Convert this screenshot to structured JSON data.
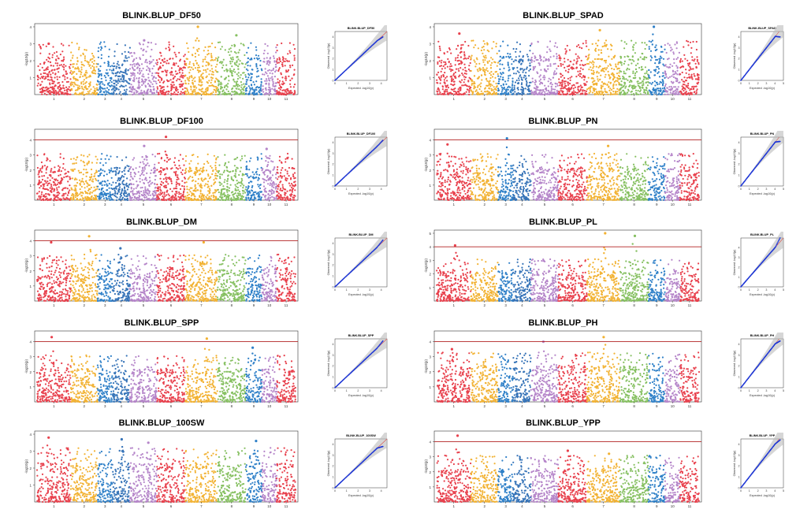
{
  "chart_data": [
    {
      "type": "scatter",
      "kind": "manhattan",
      "title": "BLINK.BLUP_DF50",
      "ylabel": "-log10(p)",
      "xlabel": "",
      "chromosomes": [
        "1",
        "2",
        "3",
        "4",
        "5",
        "6",
        "7",
        "8",
        "9",
        "10",
        "11"
      ],
      "ylim": [
        0,
        4
      ],
      "yticks": [
        "1",
        "2",
        "3",
        "4"
      ],
      "threshold": null,
      "peaks": [
        {
          "chr": "1",
          "y": 3.0
        },
        {
          "chr": "5",
          "y": 3.2
        },
        {
          "chr": "7",
          "y": 4.0
        },
        {
          "chr": "8",
          "y": 3.5
        }
      ],
      "base_height": 2.2
    },
    {
      "type": "scatter",
      "kind": "qq",
      "title": "BLINK.BLUP_DF50",
      "xlabel": "Expected -log10(p)",
      "ylabel": "Observed -log10(p)",
      "xticks": [
        "0",
        "1",
        "2",
        "3",
        "4"
      ],
      "yticks": [
        "0",
        "1",
        "2",
        "3",
        "4"
      ],
      "xlim": [
        0,
        4.5
      ],
      "ylim": [
        0,
        4.5
      ],
      "obs_max": 4.0
    },
    {
      "type": "scatter",
      "kind": "manhattan",
      "title": "BLINK.BLUP_SPAD",
      "ylabel": "-log10(p)",
      "xlabel": "",
      "chromosomes": [
        "1",
        "2",
        "3",
        "4",
        "5",
        "6",
        "7",
        "8",
        "9",
        "10",
        "11"
      ],
      "ylim": [
        0,
        4
      ],
      "yticks": [
        "1",
        "2",
        "3",
        "4"
      ],
      "threshold": null,
      "peaks": [
        {
          "chr": "1",
          "y": 3.6
        },
        {
          "chr": "7",
          "y": 3.8
        },
        {
          "chr": "9",
          "y": 4.0
        }
      ],
      "base_height": 2.3
    },
    {
      "type": "scatter",
      "kind": "qq",
      "title": "BLINK.BLUP_SPAD",
      "xlabel": "Expected -log10(p)",
      "ylabel": "Observed -log10(p)",
      "xticks": [
        "0",
        "1",
        "2",
        "3",
        "4",
        "5"
      ],
      "yticks": [
        "0",
        "1",
        "2",
        "3",
        "4"
      ],
      "xlim": [
        0,
        5
      ],
      "ylim": [
        0,
        4.5
      ],
      "obs_max": 4.0
    },
    {
      "type": "scatter",
      "kind": "manhattan",
      "title": "BLINK.BLUP_DF100",
      "ylabel": "-log10(p)",
      "xlabel": "",
      "chromosomes": [
        "1",
        "2",
        "3",
        "4",
        "5",
        "6",
        "7",
        "8",
        "9",
        "10",
        "11"
      ],
      "ylim": [
        0,
        4.5
      ],
      "yticks": [
        "1",
        "2",
        "3",
        "4"
      ],
      "threshold": 4.0,
      "peaks": [
        {
          "chr": "6",
          "y": 4.2
        },
        {
          "chr": "5",
          "y": 3.6
        },
        {
          "chr": "10",
          "y": 3.4
        }
      ],
      "base_height": 2.2
    },
    {
      "type": "scatter",
      "kind": "qq",
      "title": "BLINK.BLUP_DF100",
      "xlabel": "Expected -log10(p)",
      "ylabel": "Observed -log10(p)",
      "xticks": [
        "0",
        "1",
        "2",
        "3",
        "4"
      ],
      "yticks": [
        "0",
        "1",
        "2",
        "3",
        "4"
      ],
      "xlim": [
        0,
        4.5
      ],
      "ylim": [
        0,
        4.5
      ],
      "obs_max": 4.2
    },
    {
      "type": "scatter",
      "kind": "manhattan",
      "title": "BLINK.BLUP_PN",
      "ylabel": "-log10(p)",
      "xlabel": "",
      "chromosomes": [
        "1",
        "2",
        "3",
        "4",
        "5",
        "6",
        "7",
        "8",
        "9",
        "10",
        "11"
      ],
      "ylim": [
        0,
        4.5
      ],
      "yticks": [
        "1",
        "2",
        "3",
        "4"
      ],
      "threshold": 4.0,
      "peaks": [
        {
          "chr": "3",
          "y": 4.1
        },
        {
          "chr": "1",
          "y": 3.7
        },
        {
          "chr": "7",
          "y": 3.6
        }
      ],
      "base_height": 2.2
    },
    {
      "type": "scatter",
      "kind": "qq",
      "title": "BLINK.BLUP_PN",
      "xlabel": "Expected -log10(p)",
      "ylabel": "Observed -log10(p)",
      "xticks": [
        "0",
        "1",
        "2",
        "3",
        "4",
        "5"
      ],
      "yticks": [
        "0",
        "1",
        "2",
        "3",
        "4"
      ],
      "xlim": [
        0,
        5
      ],
      "ylim": [
        0,
        4.5
      ],
      "obs_max": 4.1
    },
    {
      "type": "scatter",
      "kind": "manhattan",
      "title": "BLINK.BLUP_DM",
      "ylabel": "-log10(p)",
      "xlabel": "",
      "chromosomes": [
        "1",
        "2",
        "3",
        "4",
        "5",
        "6",
        "7",
        "8",
        "9",
        "10",
        "11"
      ],
      "ylim": [
        0,
        4.5
      ],
      "yticks": [
        "1",
        "2",
        "3",
        "4"
      ],
      "threshold": 4.0,
      "peaks": [
        {
          "chr": "2",
          "y": 4.3
        },
        {
          "chr": "1",
          "y": 3.9
        },
        {
          "chr": "4",
          "y": 3.5
        },
        {
          "chr": "7",
          "y": 3.9
        }
      ],
      "base_height": 2.2
    },
    {
      "type": "scatter",
      "kind": "qq",
      "title": "BLINK.BLUP_DM",
      "xlabel": "Expected -log10(p)",
      "ylabel": "Observed -log10(p)",
      "xticks": [
        "0",
        "1",
        "2",
        "3",
        "4"
      ],
      "yticks": [
        "0",
        "1",
        "2",
        "3",
        "4"
      ],
      "xlim": [
        0,
        4.5
      ],
      "ylim": [
        0,
        4.5
      ],
      "obs_max": 4.3
    },
    {
      "type": "scatter",
      "kind": "manhattan",
      "title": "BLINK.BLUP_PL",
      "ylabel": "-log10(p)",
      "xlabel": "",
      "chromosomes": [
        "1",
        "2",
        "3",
        "4",
        "5",
        "6",
        "7",
        "8",
        "9",
        "10",
        "11"
      ],
      "ylim": [
        0,
        5
      ],
      "yticks": [
        "1",
        "2",
        "3",
        "4",
        "5"
      ],
      "threshold": 4.0,
      "peaks": [
        {
          "chr": "7",
          "y": 5.0
        },
        {
          "chr": "1",
          "y": 4.1
        },
        {
          "chr": "8",
          "y": 4.8
        }
      ],
      "base_height": 2.2
    },
    {
      "type": "scatter",
      "kind": "qq",
      "title": "BLINK.BLUP_PL",
      "xlabel": "Expected -log10(p)",
      "ylabel": "Observed -log10(p)",
      "xticks": [
        "0",
        "1",
        "2",
        "3",
        "4",
        "5"
      ],
      "yticks": [
        "0",
        "1",
        "2",
        "3",
        "4"
      ],
      "xlim": [
        0,
        5
      ],
      "ylim": [
        0,
        5
      ],
      "obs_max": 5.0
    },
    {
      "type": "scatter",
      "kind": "manhattan",
      "title": "BLINK.BLUP_SPP",
      "ylabel": "-log10(p)",
      "xlabel": "",
      "chromosomes": [
        "1",
        "2",
        "3",
        "4",
        "5",
        "6",
        "7",
        "8",
        "9",
        "10",
        "11"
      ],
      "ylim": [
        0,
        4.5
      ],
      "yticks": [
        "1",
        "2",
        "3",
        "4"
      ],
      "threshold": 4.0,
      "peaks": [
        {
          "chr": "1",
          "y": 4.3
        },
        {
          "chr": "7",
          "y": 4.2
        },
        {
          "chr": "9",
          "y": 3.6
        }
      ],
      "base_height": 2.2
    },
    {
      "type": "scatter",
      "kind": "qq",
      "title": "BLINK.BLUP_SPP",
      "xlabel": "Expected -log10(p)",
      "ylabel": "Observed -log10(p)",
      "xticks": [
        "0",
        "1",
        "2",
        "3",
        "4"
      ],
      "yticks": [
        "0",
        "1",
        "2",
        "3",
        "4"
      ],
      "xlim": [
        0,
        4.5
      ],
      "ylim": [
        0,
        4.5
      ],
      "obs_max": 4.3
    },
    {
      "type": "scatter",
      "kind": "manhattan",
      "title": "BLINK.BLUP_PH",
      "ylabel": "-log10(p)",
      "xlabel": "",
      "chromosomes": [
        "1",
        "2",
        "3",
        "4",
        "5",
        "6",
        "7",
        "8",
        "9",
        "10",
        "11"
      ],
      "ylim": [
        0,
        4.5
      ],
      "yticks": [
        "1",
        "2",
        "3",
        "4"
      ],
      "threshold": 4.0,
      "peaks": [
        {
          "chr": "5",
          "y": 4.0
        },
        {
          "chr": "7",
          "y": 4.3
        },
        {
          "chr": "1",
          "y": 3.5
        }
      ],
      "base_height": 2.4
    },
    {
      "type": "scatter",
      "kind": "qq",
      "title": "BLINK.BLUP_PH",
      "xlabel": "Expected -log10(p)",
      "ylabel": "Observed -log10(p)",
      "xticks": [
        "0",
        "1",
        "2",
        "3",
        "4",
        "5"
      ],
      "yticks": [
        "0",
        "1",
        "2",
        "3",
        "4"
      ],
      "xlim": [
        0,
        5
      ],
      "ylim": [
        0,
        4.5
      ],
      "obs_max": 4.3
    },
    {
      "type": "scatter",
      "kind": "manhattan",
      "title": "BLINK.BLUP_100SW",
      "ylabel": "-log10(p)",
      "xlabel": "",
      "chromosomes": [
        "1",
        "2",
        "3",
        "4",
        "5",
        "6",
        "7",
        "8",
        "9",
        "10",
        "11"
      ],
      "ylim": [
        0,
        4
      ],
      "yticks": [
        "1",
        "2",
        "3",
        "4"
      ],
      "threshold": null,
      "peaks": [
        {
          "chr": "1",
          "y": 3.8
        },
        {
          "chr": "4",
          "y": 3.7
        },
        {
          "chr": "5",
          "y": 3.5
        },
        {
          "chr": "9",
          "y": 3.6
        }
      ],
      "base_height": 2.3
    },
    {
      "type": "scatter",
      "kind": "qq",
      "title": "BLINK.BLUP_100SW",
      "xlabel": "Expected -log10(p)",
      "ylabel": "Observed -log10(p)",
      "xticks": [
        "0",
        "1",
        "2",
        "3",
        "4"
      ],
      "yticks": [
        "0",
        "1",
        "2",
        "3",
        "4"
      ],
      "xlim": [
        0,
        4.5
      ],
      "ylim": [
        0,
        4.5
      ],
      "obs_max": 3.8
    },
    {
      "type": "scatter",
      "kind": "manhattan",
      "title": "BLINK.BLUP_YPP",
      "ylabel": "-log10(p)",
      "xlabel": "",
      "chromosomes": [
        "1",
        "2",
        "3",
        "4",
        "5",
        "6",
        "7",
        "8",
        "9",
        "10",
        "11"
      ],
      "ylim": [
        0,
        4.5
      ],
      "yticks": [
        "1",
        "2",
        "3",
        "4"
      ],
      "threshold": 4.0,
      "peaks": [
        {
          "chr": "1",
          "y": 4.4
        },
        {
          "chr": "6",
          "y": 3.4
        },
        {
          "chr": "7",
          "y": 3.2
        }
      ],
      "base_height": 2.2
    },
    {
      "type": "scatter",
      "kind": "qq",
      "title": "BLINK.BLUP_YPP",
      "xlabel": "Expected -log10(p)",
      "ylabel": "Observed -log10(p)",
      "xticks": [
        "0",
        "1",
        "2",
        "3",
        "4",
        "5"
      ],
      "yticks": [
        "0",
        "1",
        "2",
        "3",
        "4"
      ],
      "xlim": [
        0,
        5
      ],
      "ylim": [
        0,
        4.5
      ],
      "obs_max": 4.4
    }
  ],
  "colors": {
    "chromosomes": [
      "#e8414d",
      "#f2b233",
      "#2f80c8",
      "#3774b8",
      "#b585c9",
      "#e8414d",
      "#f2b233",
      "#86c061",
      "#2f80c8",
      "#b585c9",
      "#e8414d"
    ],
    "threshold": "#b22222",
    "qq_points": "#1a33d6",
    "qq_ci": "#bbbbbb"
  }
}
